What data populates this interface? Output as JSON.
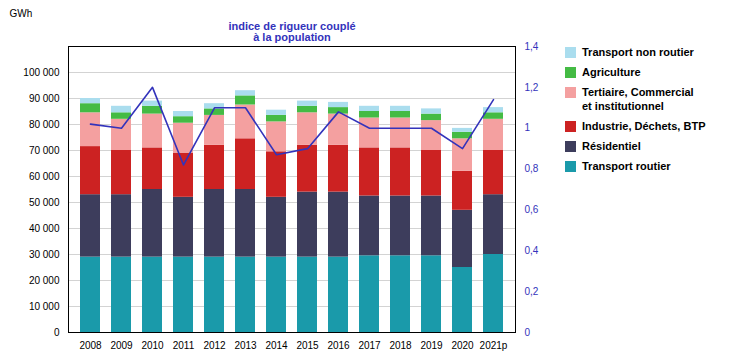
{
  "chart_data": {
    "type": "bar",
    "stacked": true,
    "categories": [
      "2008",
      "2009",
      "2010",
      "2011",
      "2012",
      "2013",
      "2014",
      "2015",
      "2016",
      "2017",
      "2018",
      "2019",
      "2020",
      "2021p"
    ],
    "series": [
      {
        "name": "Transport routier",
        "color": "#1a9aaa",
        "values": [
          29000,
          29000,
          29000,
          29000,
          29000,
          29000,
          29000,
          29000,
          29000,
          29500,
          29500,
          29500,
          25000,
          30000
        ]
      },
      {
        "name": "Résidentiel",
        "color": "#3d3d5c",
        "values": [
          24000,
          24000,
          26000,
          23000,
          26000,
          26000,
          23000,
          25000,
          25000,
          23000,
          23000,
          23000,
          22000,
          23000
        ]
      },
      {
        "name": "Industrie, Déchets, BTP",
        "color": "#cc2222",
        "values": [
          18500,
          17000,
          16000,
          17000,
          17000,
          19500,
          17500,
          18000,
          18000,
          18500,
          18500,
          17500,
          15000,
          17000
        ]
      },
      {
        "name": "Tertiaire, Commercial\net institutionnel",
        "color": "#f4a0a0",
        "values": [
          13000,
          12000,
          13000,
          11500,
          11500,
          13000,
          11500,
          12500,
          12000,
          11500,
          11500,
          11500,
          12500,
          12000
        ]
      },
      {
        "name": "Agriculture",
        "color": "#44bb44",
        "values": [
          3500,
          2500,
          3000,
          2500,
          2500,
          3500,
          2500,
          2500,
          2500,
          2500,
          2500,
          2500,
          2500,
          2500
        ]
      },
      {
        "name": "Transport non routier",
        "color": "#aaddee",
        "values": [
          2000,
          2500,
          2000,
          2000,
          2000,
          2000,
          2000,
          2000,
          2000,
          2000,
          2000,
          2000,
          1500,
          2000
        ]
      },
      {
        "name": "indice de rigueur couplé\nà la population",
        "type": "line",
        "axis": "y2",
        "color": "#3333bb",
        "values": [
          1.02,
          1.0,
          1.2,
          0.82,
          1.1,
          1.1,
          0.87,
          0.9,
          1.08,
          1.0,
          1.0,
          1.0,
          0.9,
          1.14
        ]
      }
    ],
    "ylabel": "GWh",
    "ylim": [
      0,
      110000
    ],
    "yticks": [
      0,
      {
        "value": 10000,
        "label": "10 000"
      },
      {
        "value": 20000,
        "label": "20 000"
      },
      {
        "value": 30000,
        "label": "30 000"
      },
      {
        "value": 40000,
        "label": "40 000"
      },
      {
        "value": 50000,
        "label": "50 000"
      },
      {
        "value": 60000,
        "label": "60 000"
      },
      {
        "value": 70000,
        "label": "70 000"
      },
      {
        "value": 80000,
        "label": "80 000"
      },
      {
        "value": 90000,
        "label": "90 000"
      },
      {
        "value": 100000,
        "label": "100 000"
      }
    ],
    "y2lim": [
      0,
      1.4
    ],
    "y2ticks": [
      0,
      {
        "value": 0.2,
        "label": "0,2"
      },
      {
        "value": 0.4,
        "label": "0,4"
      },
      {
        "value": 0.6,
        "label": "0,6"
      },
      {
        "value": 0.8,
        "label": "0,8"
      },
      1,
      {
        "value": 1.2,
        "label": "1,2"
      },
      {
        "value": 1.4,
        "label": "1,4"
      }
    ],
    "grid": true,
    "legend": "right"
  }
}
